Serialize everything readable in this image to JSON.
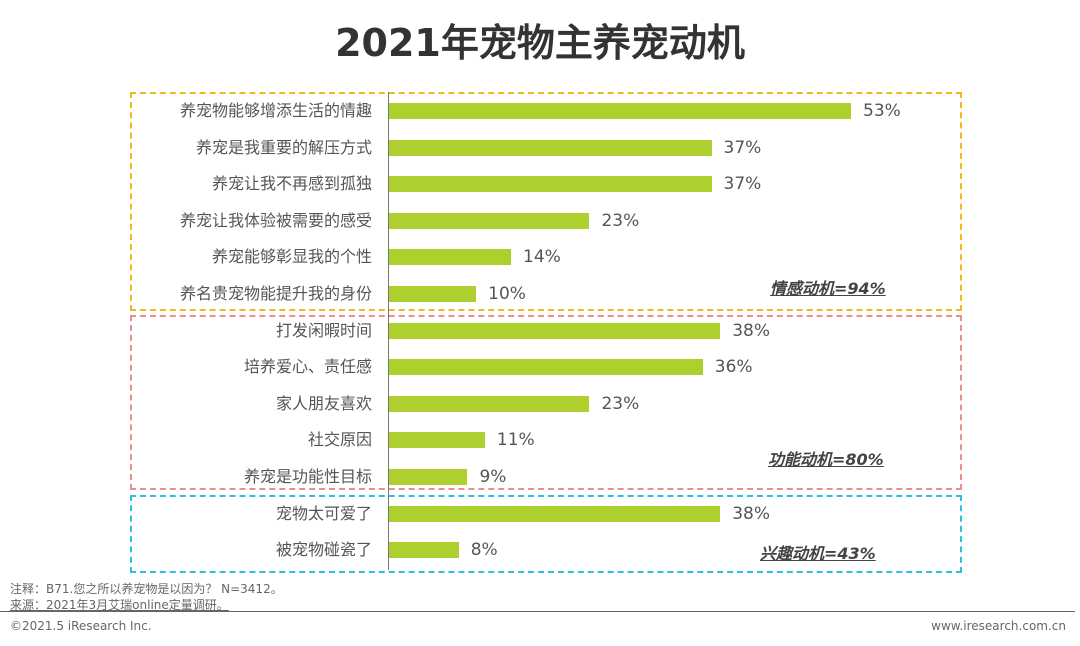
{
  "chart_data": {
    "type": "bar",
    "orientation": "horizontal",
    "title": "2021年宠物主养宠动机",
    "unit": "%",
    "xlim": [
      0,
      60
    ],
    "grid": false,
    "bar_color": "#aed02e",
    "categories": [
      "养宠物能够增添生活的情趣",
      "养宠是我重要的解压方式",
      "养宠让我不再感到孤独",
      "养宠让我体验被需要的感受",
      "养宠能够彰显我的个性",
      "养名贵宠物能提升我的身份",
      "打发闲暇时间",
      "培养爱心、责任感",
      "家人朋友喜欢",
      "社交原因",
      "养宠是功能性目标",
      "宠物太可爱了",
      "被宠物碰瓷了"
    ],
    "values": [
      53,
      37,
      37,
      23,
      14,
      10,
      38,
      36,
      23,
      11,
      9,
      38,
      8
    ],
    "value_labels": [
      "53%",
      "37%",
      "37%",
      "23%",
      "14%",
      "10%",
      "38%",
      "36%",
      "23%",
      "11%",
      "9%",
      "38%",
      "8%"
    ],
    "groups": [
      {
        "label": "情感动机=94%",
        "start": 0,
        "end": 5,
        "color": "#f5b81c"
      },
      {
        "label": "功能动机=80%",
        "start": 6,
        "end": 10,
        "color": "#e98f8f"
      },
      {
        "label": "兴趣动机=43%",
        "start": 11,
        "end": 12,
        "color": "#2fbfe0"
      }
    ]
  },
  "notes": {
    "note": "注释：B71.您之所以养宠物是以因为？ N=3412。",
    "source": "来源：2021年3月艾瑞online定量调研。"
  },
  "footer": {
    "copyright": "©2021.5 iResearch Inc.",
    "website": "www.iresearch.com.cn"
  }
}
